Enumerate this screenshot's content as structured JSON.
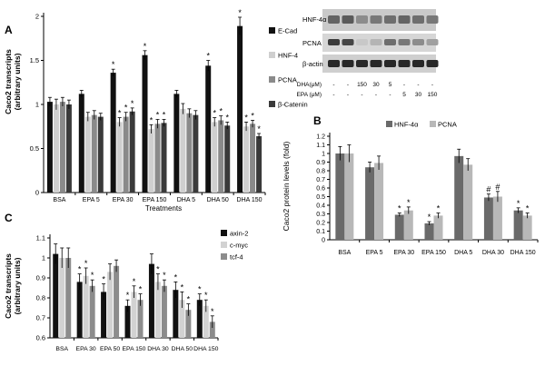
{
  "chart_data": [
    {
      "panel": "A",
      "type": "bar",
      "title": "",
      "xlabel": "Treatments",
      "ylabel": "Caco2 transcripts\n(arbitrary units)",
      "ylim": [
        0,
        2
      ],
      "yticks": [
        0,
        0.5,
        1,
        1.5,
        2
      ],
      "categories": [
        "BSA",
        "EPA 5",
        "EPA 30",
        "EPA 150",
        "DHA 5",
        "DHA 50",
        "DHA 150"
      ],
      "grid": false,
      "legend": "right",
      "series": [
        {
          "name": "E-Cad",
          "color": "#111111",
          "values": [
            1.03,
            1.12,
            1.36,
            1.56,
            1.12,
            1.44,
            1.89
          ],
          "errors": [
            0.05,
            0.04,
            0.04,
            0.05,
            0.04,
            0.06,
            0.1
          ],
          "stars": [
            0,
            0,
            1,
            1,
            0,
            1,
            1
          ]
        },
        {
          "name": "HNF-4",
          "color": "#cfcfcf",
          "values": [
            1.0,
            0.86,
            0.8,
            0.72,
            0.95,
            0.8,
            0.75
          ],
          "errors": [
            0.06,
            0.05,
            0.05,
            0.05,
            0.06,
            0.05,
            0.05
          ],
          "stars": [
            0,
            0,
            1,
            1,
            0,
            1,
            1
          ]
        },
        {
          "name": "PCNA",
          "color": "#8a8a8a",
          "values": [
            1.03,
            0.88,
            0.86,
            0.78,
            0.9,
            0.82,
            0.78
          ],
          "errors": [
            0.05,
            0.05,
            0.05,
            0.05,
            0.05,
            0.05,
            0.04
          ],
          "stars": [
            0,
            0,
            1,
            1,
            0,
            1,
            1
          ]
        },
        {
          "name": "β-Catenin",
          "color": "#3a3a3a",
          "values": [
            1.0,
            0.86,
            0.92,
            0.79,
            0.88,
            0.76,
            0.64
          ],
          "errors": [
            0.05,
            0.04,
            0.04,
            0.04,
            0.05,
            0.04,
            0.03
          ],
          "stars": [
            0,
            0,
            1,
            1,
            0,
            1,
            1
          ]
        }
      ]
    },
    {
      "panel": "B",
      "type": "bar",
      "title": "",
      "xlabel": "",
      "ylabel": "Caco2 protein levels  (fold)",
      "ylim": [
        0,
        1.2
      ],
      "yticks": [
        0,
        0.1,
        0.2,
        0.3,
        0.4,
        0.5,
        0.6,
        0.7,
        0.8,
        0.9,
        1,
        1.1,
        1.2
      ],
      "categories": [
        "BSA",
        "EPA 5",
        "EPA 30",
        "EPA 150",
        "DHA 5",
        "DHA 30",
        "DHA 150"
      ],
      "grid": false,
      "legend": "top",
      "series": [
        {
          "name": "HNF-4α",
          "color": "#6a6a6a",
          "values": [
            1.0,
            0.84,
            0.29,
            0.19,
            0.97,
            0.49,
            0.34
          ],
          "errors": [
            0.08,
            0.06,
            0.02,
            0.02,
            0.08,
            0.04,
            0.03
          ],
          "marks": [
            "",
            "",
            "*",
            "*",
            "",
            "#",
            "*"
          ]
        },
        {
          "name": "PCNA",
          "color": "#b8b8b8",
          "values": [
            1.0,
            0.89,
            0.34,
            0.28,
            0.87,
            0.5,
            0.28
          ],
          "errors": [
            0.1,
            0.08,
            0.04,
            0.03,
            0.07,
            0.06,
            0.03
          ],
          "marks": [
            "",
            "",
            "*",
            "*",
            "",
            "#",
            "*"
          ]
        }
      ]
    },
    {
      "panel": "C",
      "type": "bar",
      "title": "",
      "xlabel": "",
      "ylabel": "Caco2 transcripts\n(arbitrary units)",
      "ylim": [
        0.6,
        1.1
      ],
      "yticks": [
        0.6,
        0.7,
        0.8,
        0.9,
        1,
        1.1
      ],
      "categories": [
        "BSA",
        "EPA 30",
        "EPA 50",
        "EPA 150",
        "DHA 30",
        "DHA 50",
        "DHA 150"
      ],
      "grid": false,
      "legend": "right",
      "series": [
        {
          "name": "axin-2",
          "color": "#111111",
          "values": [
            1.02,
            0.88,
            0.83,
            0.76,
            0.97,
            0.84,
            0.79
          ],
          "errors": [
            0.05,
            0.04,
            0.04,
            0.03,
            0.05,
            0.04,
            0.03
          ],
          "stars": [
            0,
            1,
            1,
            1,
            0,
            1,
            1
          ]
        },
        {
          "name": "c-myc",
          "color": "#d2d2d2",
          "values": [
            1.0,
            0.91,
            0.93,
            0.83,
            0.88,
            0.79,
            0.76
          ],
          "errors": [
            0.05,
            0.04,
            0.04,
            0.03,
            0.04,
            0.04,
            0.03
          ],
          "stars": [
            0,
            1,
            0,
            1,
            1,
            1,
            1
          ]
        },
        {
          "name": "tcf-4",
          "color": "#8c8c8c",
          "values": [
            1.0,
            0.86,
            0.96,
            0.79,
            0.86,
            0.74,
            0.68
          ],
          "errors": [
            0.05,
            0.03,
            0.03,
            0.03,
            0.03,
            0.03,
            0.03
          ],
          "stars": [
            0,
            1,
            0,
            1,
            1,
            1,
            1
          ]
        }
      ]
    }
  ],
  "blot": {
    "row_labels": [
      "HNF-4α",
      "PCNA",
      "β-actin"
    ],
    "dha_label": "DHA(μM)",
    "epa_label": "EPA (μM)",
    "dha_values": [
      "-",
      "-",
      "150",
      "30",
      "5",
      "-",
      "-",
      "-"
    ],
    "epa_values": [
      "-",
      "-",
      "-",
      "-",
      "-",
      "5",
      "30",
      "150"
    ]
  },
  "panel_labels": [
    "A",
    "B",
    "C"
  ],
  "significance_star": "*"
}
